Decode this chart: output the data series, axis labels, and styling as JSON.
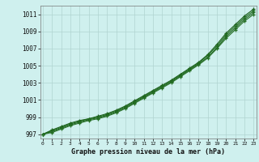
{
  "title": "Graphe pression niveau de la mer (hPa)",
  "xlabel_hours": [
    0,
    1,
    2,
    3,
    4,
    5,
    6,
    7,
    8,
    9,
    10,
    11,
    12,
    13,
    14,
    15,
    16,
    17,
    18,
    19,
    20,
    21,
    22,
    23
  ],
  "ylim": [
    996.5,
    1012.0
  ],
  "xlim": [
    -0.3,
    23.3
  ],
  "yticks": [
    997,
    999,
    1001,
    1003,
    1005,
    1007,
    1009,
    1011
  ],
  "background_color": "#cff0ee",
  "grid_color": "#b0d4d0",
  "series": [
    [
      997.0,
      997.5,
      997.9,
      998.3,
      998.6,
      998.8,
      999.1,
      999.4,
      999.8,
      1000.3,
      1000.9,
      1001.5,
      1002.1,
      1002.7,
      1003.3,
      1004.0,
      1004.7,
      1005.4,
      1006.3,
      1007.5,
      1008.8,
      1009.8,
      1010.8,
      1011.6
    ],
    [
      997.0,
      997.4,
      997.8,
      998.2,
      998.5,
      998.8,
      999.0,
      999.3,
      999.7,
      1000.2,
      1000.8,
      1001.4,
      1002.0,
      1002.6,
      1003.2,
      1003.9,
      1004.6,
      1005.3,
      1006.2,
      1007.3,
      1008.6,
      1009.6,
      1010.6,
      1011.4
    ],
    [
      997.0,
      997.3,
      997.7,
      998.1,
      998.4,
      998.7,
      998.9,
      999.2,
      999.6,
      1000.1,
      1000.7,
      1001.3,
      1001.9,
      1002.5,
      1003.1,
      1003.8,
      1004.5,
      1005.2,
      1006.0,
      1007.1,
      1008.4,
      1009.4,
      1010.4,
      1011.2
    ],
    [
      997.0,
      997.2,
      997.6,
      998.0,
      998.3,
      998.6,
      998.8,
      999.1,
      999.5,
      1000.0,
      1000.6,
      1001.2,
      1001.8,
      1002.4,
      1003.0,
      1003.7,
      1004.4,
      1005.1,
      1005.9,
      1007.0,
      1008.2,
      1009.2,
      1010.2,
      1011.0
    ]
  ],
  "line_colors": [
    "#1a5c1a",
    "#1e6e1e",
    "#226622",
    "#267026"
  ]
}
